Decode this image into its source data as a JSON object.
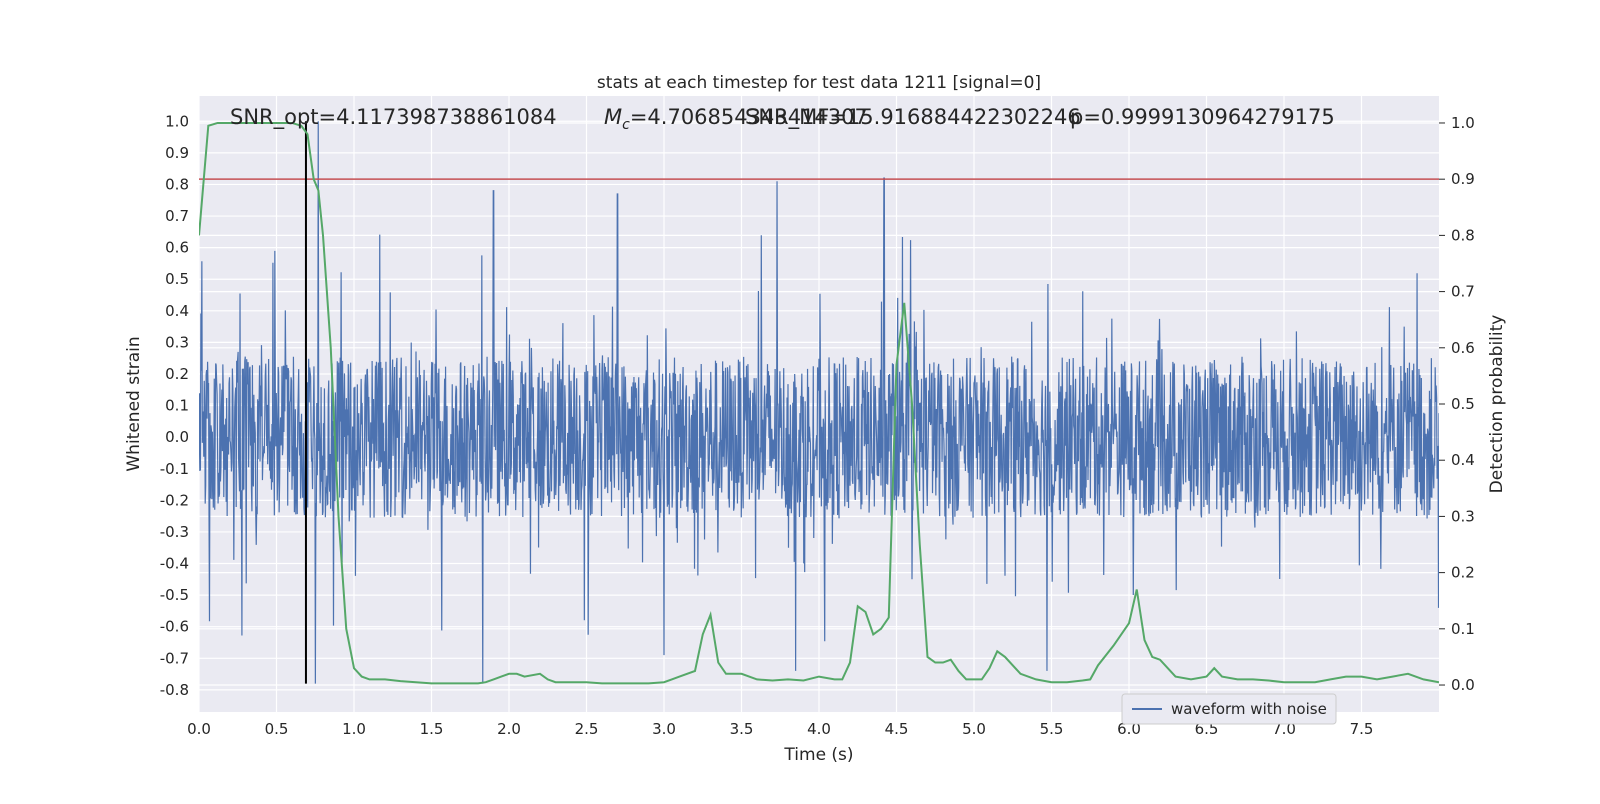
{
  "chart_data": {
    "type": "line",
    "title": "stats at each timestep for test data 1211 [signal=0]",
    "xlabel": "Time (s)",
    "ylabel": "Whitened strain",
    "y2label": "Detection probability",
    "xlim": [
      0.0,
      8.0
    ],
    "ylim": [
      -0.87,
      1.08
    ],
    "y2lim": [
      -0.048,
      1.048
    ],
    "xticks": [
      "0.0",
      "0.5",
      "1.0",
      "1.5",
      "2.0",
      "2.5",
      "3.0",
      "3.5",
      "4.0",
      "4.5",
      "5.0",
      "5.5",
      "6.0",
      "6.5",
      "7.0",
      "7.5"
    ],
    "yticks": [
      "1.0",
      "0.9",
      "0.8",
      "0.7",
      "0.6",
      "0.5",
      "0.4",
      "0.3",
      "0.2",
      "0.1",
      "0.0",
      "-0.1",
      "-0.2",
      "-0.3",
      "-0.4",
      "-0.5",
      "-0.6",
      "-0.7",
      "-0.8"
    ],
    "y2ticks": [
      "1.0",
      "0.9",
      "0.8",
      "0.7",
      "0.6",
      "0.5",
      "0.4",
      "0.3",
      "0.2",
      "0.1",
      "0.0"
    ],
    "grid": true,
    "legend": {
      "placement": "lower-right",
      "entries": [
        "waveform with noise"
      ]
    },
    "annotations": {
      "snr_opt": "SNR_opt=4.117398738861084",
      "mc_prefix": "M",
      "mc_sub": "c",
      "mc_value": "=4.706854343414307",
      "snr_mf": "SNR_MF=15.916884422302246",
      "p_value": "p=0.9999130964279175"
    },
    "threshold_line": {
      "y2": 0.9
    },
    "marker_line": {
      "x": 0.69,
      "y_from": -0.78,
      "y_to": 1.0
    },
    "waveform": {
      "name": "waveform with noise",
      "x_range": [
        0.0,
        8.0
      ],
      "typical_amplitude": 0.3,
      "peak_spikes": [
        {
          "x": 0.77,
          "y": 1.0
        },
        {
          "x": 3.73,
          "y": 0.81
        },
        {
          "x": 4.42,
          "y": 0.82
        },
        {
          "x": 2.7,
          "y": 0.77
        },
        {
          "x": 1.9,
          "y": 0.78
        },
        {
          "x": 0.75,
          "y": -0.78
        },
        {
          "x": 1.83,
          "y": -0.78
        },
        {
          "x": 3.85,
          "y": -0.74
        },
        {
          "x": 5.47,
          "y": -0.74
        },
        {
          "x": 3.0,
          "y": -0.69
        }
      ]
    },
    "series": [
      {
        "name": "",
        "axis": "y2",
        "color": "#55a868",
        "x": [
          0.0,
          0.06,
          0.12,
          0.2,
          0.3,
          0.4,
          0.5,
          0.6,
          0.66,
          0.7,
          0.74,
          0.77,
          0.8,
          0.85,
          0.9,
          0.95,
          1.0,
          1.05,
          1.1,
          1.2,
          1.3,
          1.4,
          1.5,
          1.6,
          1.7,
          1.8,
          1.85,
          1.9,
          1.95,
          2.0,
          2.05,
          2.1,
          2.2,
          2.25,
          2.3,
          2.4,
          2.5,
          2.6,
          2.7,
          2.8,
          2.9,
          3.0,
          3.05,
          3.1,
          3.2,
          3.25,
          3.3,
          3.35,
          3.4,
          3.5,
          3.6,
          3.7,
          3.8,
          3.9,
          4.0,
          4.1,
          4.15,
          4.2,
          4.25,
          4.3,
          4.35,
          4.4,
          4.45,
          4.5,
          4.55,
          4.6,
          4.65,
          4.7,
          4.75,
          4.8,
          4.85,
          4.9,
          4.95,
          5.0,
          5.05,
          5.1,
          5.15,
          5.2,
          5.3,
          5.4,
          5.5,
          5.6,
          5.7,
          5.75,
          5.8,
          5.9,
          6.0,
          6.05,
          6.1,
          6.15,
          6.2,
          6.3,
          6.4,
          6.5,
          6.55,
          6.6,
          6.7,
          6.8,
          6.9,
          7.0,
          7.1,
          7.2,
          7.3,
          7.4,
          7.5,
          7.6,
          7.7,
          7.8,
          7.9,
          8.0
        ],
        "values": [
          0.8,
          0.995,
          1.0,
          1.0,
          1.0,
          1.0,
          1.0,
          1.0,
          0.995,
          0.98,
          0.9,
          0.88,
          0.8,
          0.6,
          0.3,
          0.1,
          0.03,
          0.015,
          0.01,
          0.01,
          0.007,
          0.005,
          0.003,
          0.003,
          0.003,
          0.003,
          0.005,
          0.01,
          0.015,
          0.02,
          0.02,
          0.015,
          0.02,
          0.01,
          0.005,
          0.005,
          0.005,
          0.003,
          0.003,
          0.003,
          0.003,
          0.005,
          0.01,
          0.015,
          0.025,
          0.09,
          0.125,
          0.04,
          0.02,
          0.02,
          0.01,
          0.008,
          0.01,
          0.008,
          0.015,
          0.01,
          0.01,
          0.04,
          0.14,
          0.13,
          0.09,
          0.1,
          0.12,
          0.57,
          0.68,
          0.5,
          0.25,
          0.05,
          0.04,
          0.04,
          0.045,
          0.025,
          0.01,
          0.01,
          0.01,
          0.03,
          0.06,
          0.05,
          0.02,
          0.01,
          0.005,
          0.005,
          0.008,
          0.01,
          0.035,
          0.07,
          0.11,
          0.17,
          0.08,
          0.05,
          0.045,
          0.015,
          0.01,
          0.015,
          0.03,
          0.015,
          0.01,
          0.01,
          0.008,
          0.005,
          0.005,
          0.005,
          0.01,
          0.015,
          0.015,
          0.01,
          0.015,
          0.02,
          0.01,
          0.005
        ]
      }
    ]
  }
}
